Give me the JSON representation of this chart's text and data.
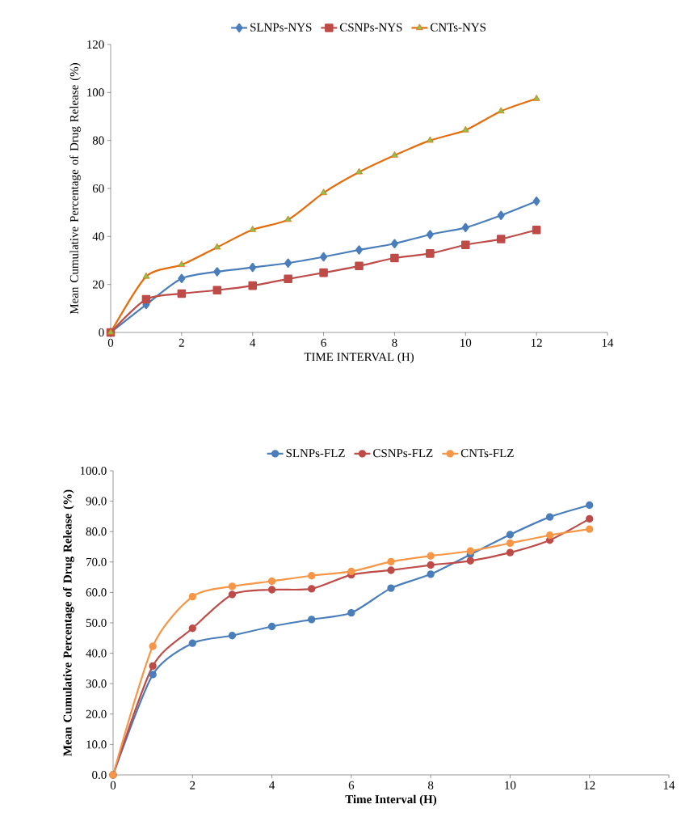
{
  "chart_data": [
    {
      "type": "line",
      "xlabel": "TIME INTERVAL (H)",
      "ylabel": "Mean Cumulative Percentage of Drug Release (%)",
      "x": [
        0,
        1,
        2,
        3,
        4,
        5,
        6,
        7,
        8,
        9,
        10,
        11,
        12
      ],
      "series": [
        {
          "name": "SLNPs-NYS",
          "color": "#4a7ebb",
          "marker": "diamond",
          "values": [
            0,
            11.6,
            22.5,
            25.3,
            27.1,
            28.9,
            31.5,
            34.4,
            37.0,
            40.8,
            43.7,
            48.8,
            54.7
          ]
        },
        {
          "name": "CSNPs-NYS",
          "color": "#be4b48",
          "marker": "square",
          "values": [
            0,
            13.8,
            16.2,
            17.6,
            19.5,
            22.3,
            24.9,
            27.7,
            31.0,
            32.9,
            36.5,
            38.9,
            42.7
          ]
        },
        {
          "name": "CNTs-NYS",
          "color": "#e46c0a",
          "marker": "triangle",
          "values": [
            0,
            23.3,
            28.2,
            35.5,
            42.8,
            47.0,
            58.2,
            66.8,
            73.8,
            80.0,
            84.3,
            92.2,
            97.4
          ]
        }
      ],
      "xlim": [
        0,
        14
      ],
      "xticks": [
        0,
        2,
        4,
        6,
        8,
        10,
        12,
        14
      ],
      "ylim": [
        0,
        120
      ],
      "yticks": [
        0,
        20,
        40,
        60,
        80,
        100,
        120
      ],
      "legend": "top"
    },
    {
      "type": "line",
      "xlabel": "Time Interval (H)",
      "ylabel": "Mean Cumulative Percentage of Drug Release (%)",
      "x": [
        0,
        1,
        2,
        3,
        4,
        5,
        6,
        7,
        8,
        9,
        10,
        11,
        12
      ],
      "series": [
        {
          "name": "SLNPs-FLZ",
          "color": "#4a7ebb",
          "values": [
            0,
            33.0,
            43.3,
            45.8,
            48.8,
            51.1,
            53.3,
            61.4,
            66.0,
            72.5,
            79.0,
            84.8,
            88.7
          ]
        },
        {
          "name": "CSNPs-FLZ",
          "color": "#be4b48",
          "values": [
            0,
            35.8,
            48.2,
            59.3,
            60.9,
            61.2,
            65.8,
            67.3,
            69.0,
            70.4,
            73.1,
            77.2,
            84.2
          ]
        },
        {
          "name": "CNTs-FLZ",
          "color": "#f79646",
          "values": [
            0,
            42.3,
            58.6,
            62.0,
            63.7,
            65.5,
            66.9,
            70.1,
            72.0,
            73.6,
            76.2,
            78.8,
            80.8
          ]
        }
      ],
      "marker": "circle",
      "xlim": [
        0,
        14
      ],
      "xticks": [
        0,
        2,
        4,
        6,
        8,
        10,
        12,
        14
      ],
      "ylim": [
        0,
        100
      ],
      "yticks": [
        {
          "value": 0,
          "label": "0.0"
        },
        {
          "value": 10,
          "label": "10.0"
        },
        {
          "value": 20,
          "label": "20.0"
        },
        {
          "value": 30,
          "label": "30.0"
        },
        {
          "value": 40,
          "label": "40.0"
        },
        {
          "value": 50,
          "label": "50.0"
        },
        {
          "value": 60,
          "label": "60.0"
        },
        {
          "value": 70,
          "label": "70.0"
        },
        {
          "value": 80,
          "label": "80.0"
        },
        {
          "value": 90,
          "label": "90.0"
        },
        {
          "value": 100,
          "label": "100.0"
        }
      ],
      "legend": "top"
    }
  ]
}
